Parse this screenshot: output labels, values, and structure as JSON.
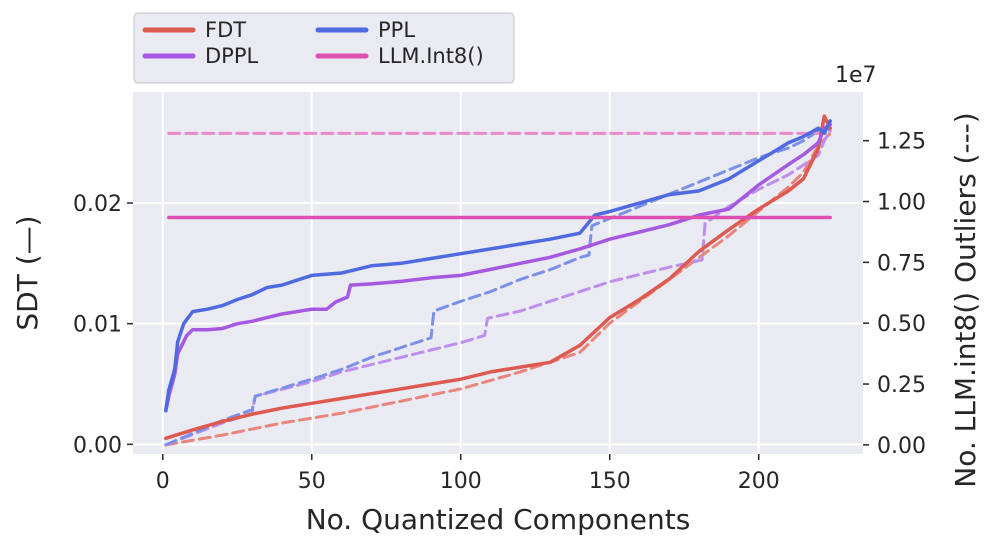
{
  "chart_data": {
    "type": "line",
    "xlabel": "No. Quantized Components",
    "ylabel_left": "SDT (—)",
    "ylabel_right": "No. LLM.int8() Outliers (---)",
    "right_axis_offset_label": "1e7",
    "xlim": [
      -10,
      235
    ],
    "ylim_left": [
      -0.0008,
      0.0292
    ],
    "ylim_right": [
      -375000,
      14500000
    ],
    "x_ticks": [
      0,
      50,
      100,
      150,
      200
    ],
    "x_tick_labels": [
      "0",
      "50",
      "100",
      "150",
      "200"
    ],
    "y_left_ticks": [
      0.0,
      0.01,
      0.02
    ],
    "y_left_tick_labels": [
      "0.00",
      "0.01",
      "0.02"
    ],
    "y_right_ticks": [
      0,
      0.25,
      0.5,
      0.75,
      1.0,
      1.25
    ],
    "y_right_tick_labels": [
      "0.00",
      "0.25",
      "0.50",
      "0.75",
      "1.00",
      "1.25"
    ],
    "grid": true,
    "legend_placement": "top-left, above plot",
    "legend": [
      {
        "label": "FDT",
        "color": "#dd5a50"
      },
      {
        "label": "DPPL",
        "color": "#a459e0"
      },
      {
        "label": "PPL",
        "color": "#4f6ae0"
      },
      {
        "label": "LLM.Int8()",
        "color": "#dd4fb0"
      }
    ],
    "series": [
      {
        "name": "FDT",
        "axis": "left",
        "style": "solid",
        "color": "#dd5a50",
        "x": [
          1,
          10,
          20,
          30,
          40,
          50,
          60,
          70,
          80,
          90,
          100,
          110,
          120,
          130,
          140,
          150,
          160,
          170,
          180,
          190,
          200,
          210,
          215,
          218,
          220,
          222,
          224
        ],
        "y": [
          0.0005,
          0.0012,
          0.0019,
          0.0025,
          0.003,
          0.0034,
          0.0038,
          0.0042,
          0.0046,
          0.005,
          0.0054,
          0.006,
          0.0064,
          0.0068,
          0.0082,
          0.0105,
          0.012,
          0.0137,
          0.016,
          0.0178,
          0.0195,
          0.021,
          0.022,
          0.0235,
          0.0245,
          0.0272,
          0.0262
        ]
      },
      {
        "name": "DPPL",
        "axis": "left",
        "style": "solid",
        "color": "#a459e0",
        "x": [
          1,
          2,
          4,
          5,
          8,
          10,
          15,
          20,
          25,
          30,
          35,
          40,
          50,
          55,
          58,
          60,
          62,
          63,
          70,
          80,
          90,
          100,
          110,
          120,
          130,
          140,
          150,
          155,
          160,
          170,
          175,
          180,
          190,
          200,
          210,
          215,
          220,
          222,
          224
        ],
        "y": [
          0.0028,
          0.004,
          0.0058,
          0.0075,
          0.009,
          0.0095,
          0.0095,
          0.0096,
          0.01,
          0.0102,
          0.0105,
          0.0108,
          0.0112,
          0.0112,
          0.0118,
          0.012,
          0.0122,
          0.0132,
          0.0133,
          0.0135,
          0.0138,
          0.014,
          0.0145,
          0.015,
          0.0155,
          0.0162,
          0.017,
          0.0173,
          0.0176,
          0.0182,
          0.0186,
          0.019,
          0.0195,
          0.0215,
          0.0232,
          0.024,
          0.025,
          0.0262,
          0.0265
        ]
      },
      {
        "name": "PPL",
        "axis": "left",
        "style": "solid",
        "color": "#4f6ae0",
        "x": [
          1,
          2,
          4,
          5,
          7,
          10,
          15,
          20,
          25,
          30,
          35,
          40,
          45,
          50,
          60,
          65,
          70,
          80,
          90,
          100,
          110,
          120,
          130,
          140,
          145,
          150,
          160,
          170,
          180,
          190,
          200,
          210,
          215,
          220,
          222,
          224
        ],
        "y": [
          0.0028,
          0.0045,
          0.0062,
          0.0085,
          0.01,
          0.011,
          0.0112,
          0.0115,
          0.012,
          0.0124,
          0.013,
          0.0132,
          0.0136,
          0.014,
          0.0142,
          0.0145,
          0.0148,
          0.015,
          0.0154,
          0.0158,
          0.0162,
          0.0166,
          0.017,
          0.0175,
          0.019,
          0.0193,
          0.02,
          0.0207,
          0.021,
          0.022,
          0.0235,
          0.025,
          0.0255,
          0.0262,
          0.0258,
          0.0268
        ]
      },
      {
        "name": "LLM.Int8()",
        "axis": "left",
        "style": "solid",
        "color": "#dd4fb0",
        "x": [
          2,
          224
        ],
        "y": [
          0.0188,
          0.0188
        ]
      },
      {
        "name": "FDT",
        "axis": "right",
        "style": "dashed",
        "color": "#e8857c",
        "x": [
          1,
          20,
          40,
          60,
          80,
          100,
          120,
          140,
          150,
          160,
          170,
          180,
          190,
          200,
          210,
          215,
          220,
          224
        ],
        "y": [
          0,
          400000,
          900000,
          1300000,
          1800000,
          2300000,
          3000000,
          3800000,
          5000000,
          5900000,
          6800000,
          7700000,
          8600000,
          9600000,
          10600000,
          11200000,
          12300000,
          12800000
        ]
      },
      {
        "name": "DPPL",
        "axis": "right",
        "style": "dashed",
        "color": "#bd8eeb",
        "x": [
          1,
          20,
          30,
          31,
          50,
          60,
          70,
          80,
          90,
          100,
          108,
          109,
          120,
          130,
          140,
          150,
          160,
          170,
          181,
          182,
          190,
          200,
          210,
          215,
          220,
          222,
          224
        ],
        "y": [
          0,
          900000,
          1300000,
          2000000,
          2600000,
          3000000,
          3300000,
          3600000,
          3900000,
          4200000,
          4500000,
          5200000,
          5500000,
          5900000,
          6300000,
          6700000,
          7000000,
          7300000,
          7600000,
          9100000,
          9800000,
          10500000,
          11100000,
          11500000,
          11900000,
          12500000,
          12900000
        ]
      },
      {
        "name": "PPL",
        "axis": "right",
        "style": "dashed",
        "color": "#7b90e8",
        "x": [
          1,
          20,
          30,
          31,
          50,
          60,
          70,
          80,
          90,
          91,
          100,
          110,
          120,
          130,
          140,
          143,
          144,
          150,
          160,
          170,
          180,
          190,
          200,
          210,
          215,
          220,
          224
        ],
        "y": [
          0,
          1000000,
          1450000,
          2000000,
          2700000,
          3100000,
          3600000,
          4000000,
          4400000,
          5500000,
          5900000,
          6300000,
          6800000,
          7200000,
          7700000,
          7800000,
          9000000,
          9300000,
          9800000,
          10300000,
          10800000,
          11300000,
          11800000,
          12200000,
          12500000,
          12900000,
          13000000
        ]
      },
      {
        "name": "LLM.Int8()",
        "axis": "right",
        "style": "dashed",
        "color": "#e88bc7",
        "x": [
          2,
          224
        ],
        "y": [
          12800000,
          12800000
        ]
      }
    ]
  }
}
